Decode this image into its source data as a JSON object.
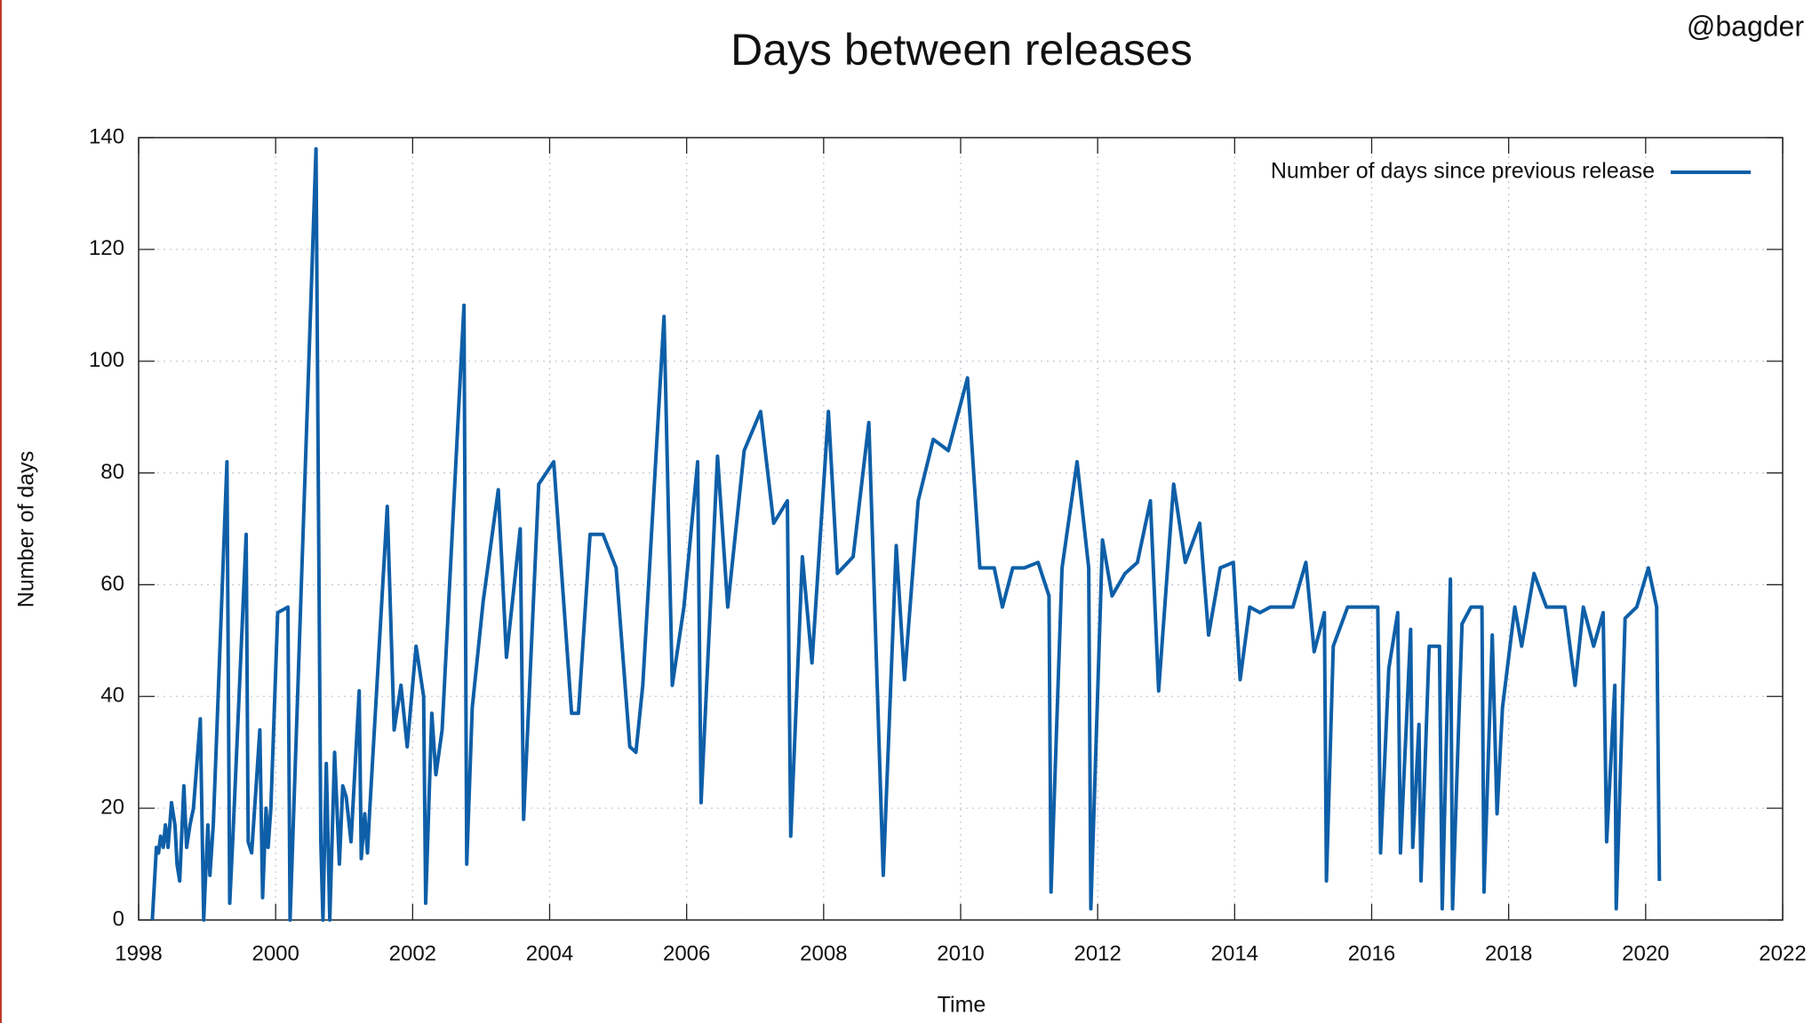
{
  "watermark": "@bagder",
  "chart_data": {
    "type": "line",
    "title": "Days between releases",
    "xlabel": "Time",
    "ylabel": "Number of days",
    "x": [
      1998.2,
      1998.26,
      1998.29,
      1998.32,
      1998.36,
      1998.39,
      1998.43,
      1998.48,
      1998.53,
      1998.56,
      1998.6,
      1998.66,
      1998.7,
      1998.75,
      1998.8,
      1998.9,
      1998.95,
      1999.01,
      1999.04,
      1999.09,
      1999.29,
      1999.33,
      1999.38,
      1999.57,
      1999.6,
      1999.65,
      1999.77,
      1999.81,
      1999.86,
      1999.89,
      1999.93,
      2000.03,
      2000.18,
      2000.21,
      2000.59,
      2000.66,
      2000.69,
      2000.74,
      2000.79,
      2000.86,
      2000.93,
      2000.98,
      2001.03,
      2001.1,
      2001.22,
      2001.25,
      2001.3,
      2001.34,
      2001.37,
      2001.63,
      2001.73,
      2001.83,
      2001.92,
      2002.05,
      2002.16,
      2002.19,
      2002.28,
      2002.34,
      2002.43,
      2002.75,
      2002.79,
      2002.87,
      2003.03,
      2003.25,
      2003.37,
      2003.57,
      2003.62,
      2003.84,
      2004.06,
      2004.32,
      2004.42,
      2004.59,
      2004.78,
      2004.97,
      2005.17,
      2005.26,
      2005.36,
      2005.67,
      2005.79,
      2005.96,
      2006.16,
      2006.21,
      2006.45,
      2006.6,
      2006.84,
      2007.08,
      2007.27,
      2007.47,
      2007.52,
      2007.69,
      2007.83,
      2008.07,
      2008.2,
      2008.43,
      2008.66,
      2008.87,
      2009.06,
      2009.18,
      2009.38,
      2009.6,
      2009.82,
      2010.1,
      2010.28,
      2010.49,
      2010.61,
      2010.76,
      2010.93,
      2011.13,
      2011.29,
      2011.32,
      2011.48,
      2011.7,
      2011.87,
      2011.9,
      2012.07,
      2012.21,
      2012.4,
      2012.58,
      2012.77,
      2012.89,
      2013.11,
      2013.28,
      2013.49,
      2013.62,
      2013.79,
      2013.98,
      2014.08,
      2014.22,
      2014.37,
      2014.52,
      2014.7,
      2014.85,
      2015.04,
      2015.16,
      2015.31,
      2015.34,
      2015.44,
      2015.65,
      2015.84,
      2015.94,
      2016.09,
      2016.13,
      2016.25,
      2016.38,
      2016.42,
      2016.57,
      2016.6,
      2016.69,
      2016.72,
      2016.84,
      2016.99,
      2017.03,
      2017.15,
      2017.18,
      2017.32,
      2017.45,
      2017.61,
      2017.64,
      2017.76,
      2017.83,
      2017.91,
      2018.09,
      2018.19,
      2018.37,
      2018.55,
      2018.82,
      2018.97,
      2019.09,
      2019.24,
      2019.38,
      2019.43,
      2019.55,
      2019.57,
      2019.7,
      2019.87,
      2020.04,
      2020.16,
      2020.2
    ],
    "series": [
      {
        "name": "Number of days since previous release",
        "color": "#0e5fa8",
        "values": [
          0,
          13,
          12,
          15,
          13,
          17,
          13,
          21,
          17,
          10,
          7,
          24,
          13,
          17,
          20,
          36,
          0,
          17,
          8,
          17,
          82,
          3,
          16,
          69,
          14,
          12,
          34,
          4,
          20,
          13,
          20,
          55,
          56,
          0,
          138,
          14,
          0,
          28,
          0,
          30,
          10,
          24,
          22,
          14,
          41,
          11,
          19,
          12,
          19,
          74,
          34,
          42,
          31,
          49,
          40,
          3,
          37,
          26,
          34,
          110,
          10,
          38,
          57,
          77,
          47,
          70,
          18,
          78,
          82,
          37,
          37,
          69,
          69,
          63,
          31,
          30,
          42,
          108,
          42,
          56,
          82,
          21,
          83,
          56,
          84,
          91,
          71,
          75,
          15,
          65,
          46,
          91,
          62,
          65,
          89,
          8,
          67,
          43,
          75,
          86,
          84,
          97,
          63,
          63,
          56,
          63,
          63,
          64,
          58,
          5,
          63,
          82,
          63,
          2,
          68,
          58,
          62,
          64,
          75,
          41,
          78,
          64,
          71,
          51,
          63,
          64,
          43,
          56,
          55,
          56,
          56,
          56,
          64,
          48,
          55,
          7,
          49,
          56,
          56,
          56,
          56,
          12,
          45,
          55,
          12,
          52,
          13,
          35,
          7,
          49,
          49,
          2,
          61,
          2,
          53,
          56,
          56,
          5,
          51,
          19,
          38,
          56,
          49,
          62,
          56,
          56,
          42,
          56,
          49,
          55,
          14,
          42,
          2,
          54,
          56,
          63,
          56,
          7
        ]
      }
    ],
    "xlim": [
      1998,
      2022
    ],
    "xticks": [
      1998,
      2000,
      2002,
      2004,
      2006,
      2008,
      2010,
      2012,
      2014,
      2016,
      2018,
      2020,
      2022
    ],
    "ylim": [
      0,
      140
    ],
    "yticks": [
      0,
      20,
      40,
      60,
      80,
      100,
      120,
      140
    ],
    "grid": true,
    "legend": "top-right"
  }
}
